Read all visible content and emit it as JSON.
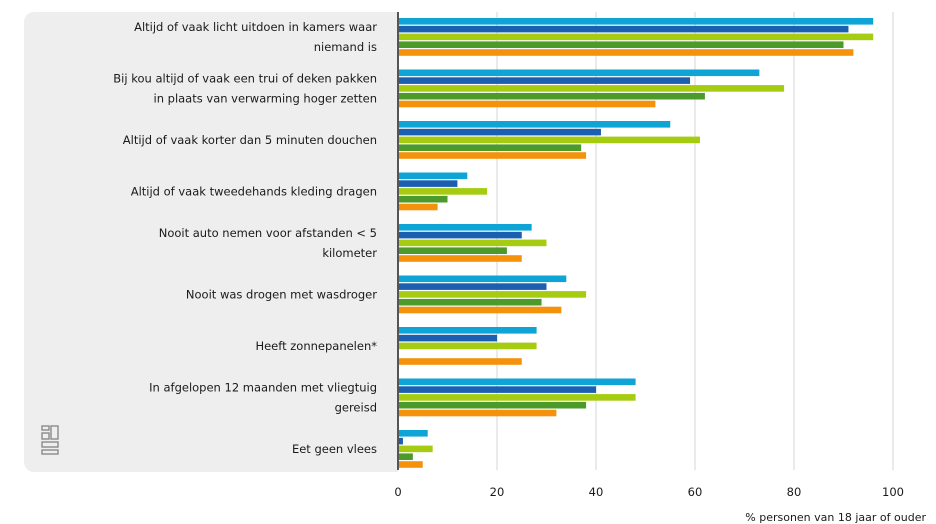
{
  "chart_data": {
    "type": "bar",
    "orientation": "horizontal",
    "categories": [
      [
        "Altijd of vaak licht uitdoen in kamers waar",
        "niemand is"
      ],
      [
        "Bij kou altijd of vaak een trui of deken pakken",
        "in plaats van verwarming hoger zetten"
      ],
      [
        "Altijd of vaak korter dan 5 minuten douchen"
      ],
      [
        "Altijd of vaak tweedehands kleding dragen"
      ],
      [
        "Nooit auto nemen voor afstanden < 5",
        "kilometer"
      ],
      [
        "Nooit was drogen met wasdroger"
      ],
      [
        "Heeft zonnepanelen*"
      ],
      [
        "In afgelopen 12 maanden met vliegtuig",
        "gereisd"
      ],
      [
        "Eet geen vlees"
      ]
    ],
    "series": [
      {
        "color": "#0ea5d6",
        "values": [
          96,
          73,
          55,
          14,
          27,
          34,
          28,
          48,
          6
        ]
      },
      {
        "color": "#1b5fb0",
        "values": [
          91,
          59,
          41,
          12,
          25,
          30,
          20,
          40,
          1
        ]
      },
      {
        "color": "#a6cc12",
        "values": [
          96,
          78,
          61,
          18,
          30,
          38,
          28,
          48,
          7
        ]
      },
      {
        "color": "#4c9a2a",
        "values": [
          90,
          62,
          37,
          10,
          22,
          29,
          null,
          38,
          3
        ]
      },
      {
        "color": "#f5920c",
        "values": [
          92,
          52,
          38,
          8,
          25,
          33,
          25,
          32,
          5
        ]
      }
    ],
    "xlim": [
      0,
      100
    ],
    "xticks": [
      0,
      20,
      40,
      60,
      80,
      100
    ],
    "xlabel": "% personen van 18 jaar of ouder",
    "grid": true
  },
  "colors": {
    "panel": "#eeeeee",
    "axis": "#555555",
    "grid": "#d4d4d4"
  },
  "logo": {
    "icon": "cbs-logo-icon"
  }
}
